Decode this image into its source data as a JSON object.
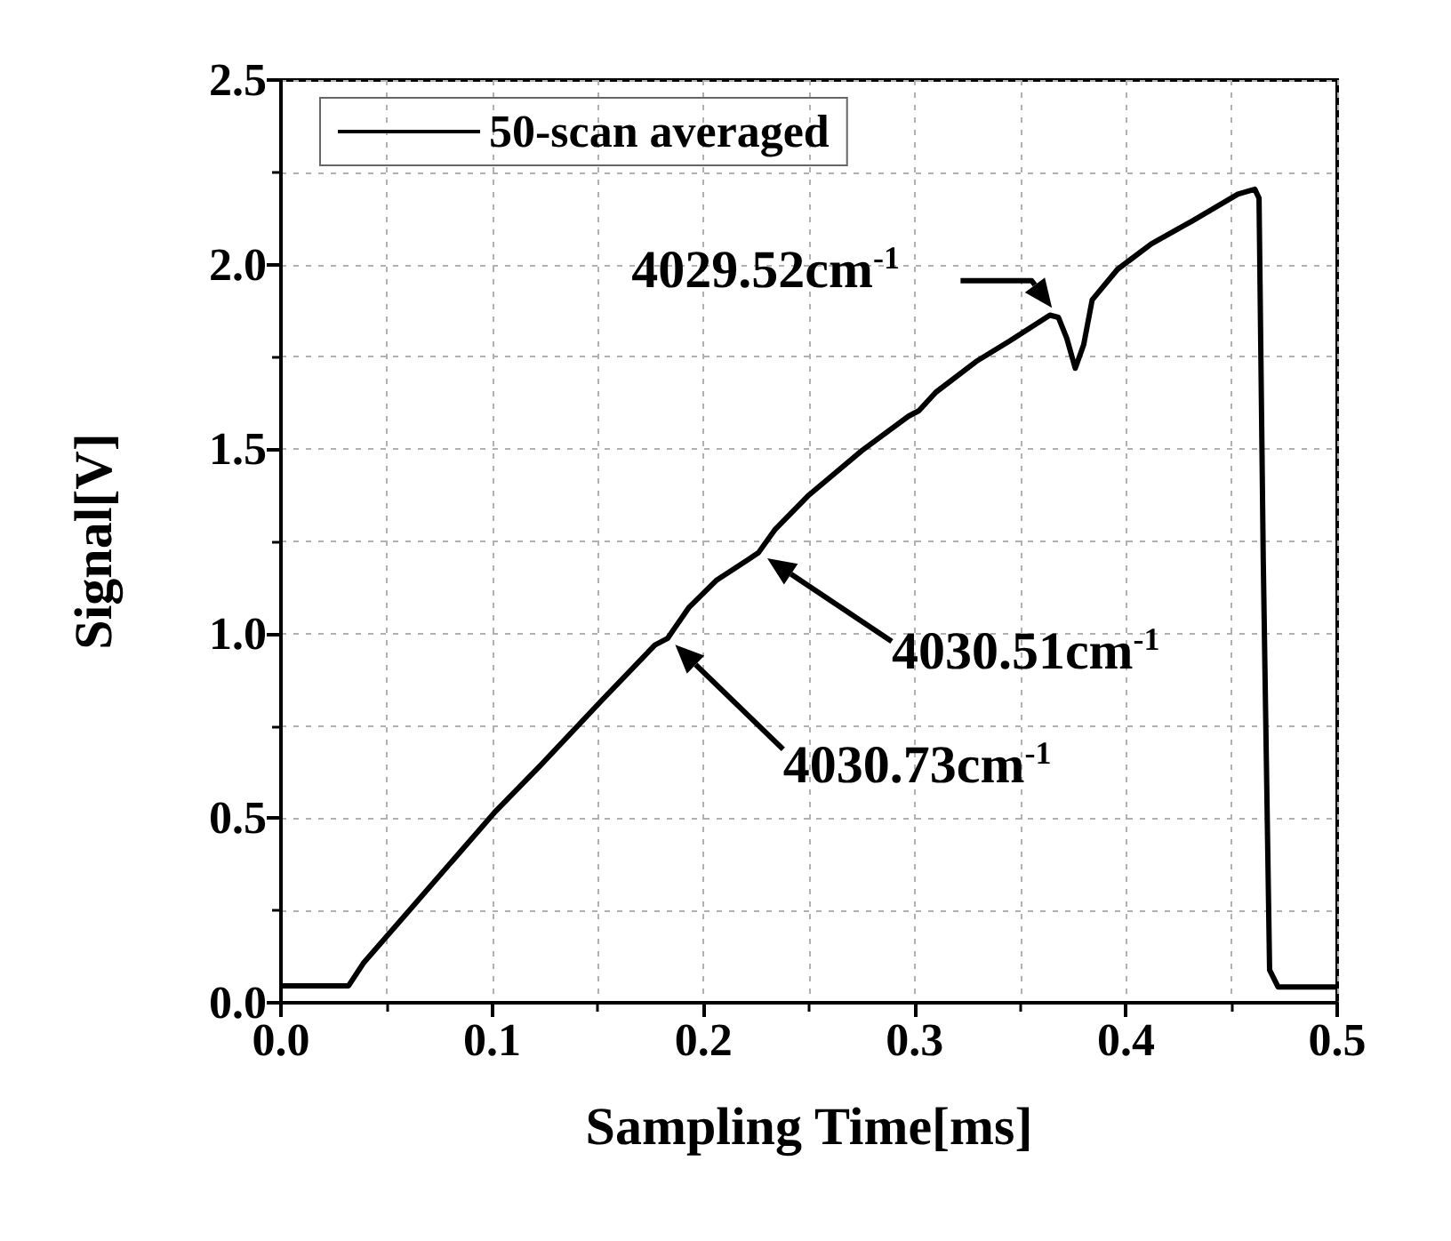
{
  "chart_data": {
    "type": "line",
    "xlabel": "Sampling Time[ms]",
    "ylabel": "Signal[V]",
    "xlim": [
      0,
      0.5
    ],
    "xticks": [
      {
        "value": 0,
        "label": "0.0"
      },
      0.1,
      0.2,
      0.3,
      0.4,
      0.5
    ],
    "ylim": [
      0,
      2.5
    ],
    "yticks": [
      {
        "value": 0,
        "label": "0.0"
      },
      0.5,
      {
        "value": 1,
        "label": "1.0"
      },
      1.5,
      {
        "value": 2,
        "label": "2.0"
      },
      2.5
    ],
    "grid": true,
    "legend": "top left",
    "line_style": "solid",
    "marker": "none",
    "series": [
      {
        "name": "50-scan averaged",
        "color": "#000000",
        "x": [
          0,
          0.032,
          0.039,
          0.101,
          0.123,
          0.152,
          0.177,
          0.183,
          0.193,
          0.206,
          0.221,
          0.226,
          0.234,
          0.25,
          0.275,
          0.297,
          0.302,
          0.31,
          0.329,
          0.345,
          0.364,
          0.368,
          0.372,
          0.376,
          0.38,
          0.384,
          0.396,
          0.412,
          0.431,
          0.453,
          0.461,
          0.463,
          0.465,
          0.468,
          0.472,
          0.5
        ],
        "values": [
          0.046,
          0.046,
          0.107,
          0.515,
          0.644,
          0.82,
          0.969,
          0.987,
          1.07,
          1.144,
          1.2,
          1.219,
          1.283,
          1.376,
          1.496,
          1.589,
          1.604,
          1.654,
          1.737,
          1.793,
          1.863,
          1.857,
          1.8,
          1.719,
          1.783,
          1.904,
          1.987,
          2.056,
          2.117,
          2.191,
          2.204,
          2.18,
          1.2,
          0.089,
          0.043,
          0.043
        ]
      }
    ],
    "annotations": [
      {
        "text": "4029.52cm$^{-1}$",
        "x": 0.368,
        "y": 1.86
      },
      {
        "text": "4030.51cm$^{-1}$",
        "x": 0.226,
        "y": 1.22
      },
      {
        "text": "4030.73cm$^{-1}$",
        "x": 0.183,
        "y": 0.99
      }
    ]
  }
}
